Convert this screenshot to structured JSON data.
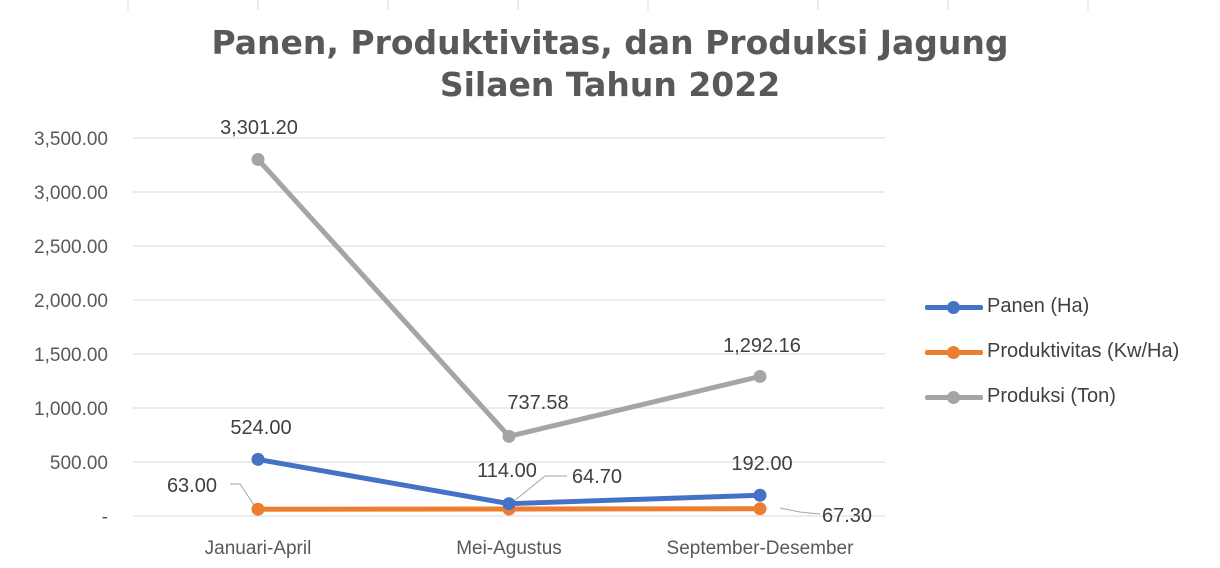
{
  "chart_data": {
    "type": "line",
    "title_lines": [
      "Panen, Produktivitas, dan Produksi Jagung",
      "Silaen Tahun 2022"
    ],
    "categories": [
      "Januari-April",
      "Mei-Agustus",
      "September-Desember"
    ],
    "ylim": [
      0,
      3500
    ],
    "yticks": [
      {
        "value": 0,
        "label": "-"
      },
      {
        "value": 500,
        "label": "500.00"
      },
      {
        "value": 1000,
        "label": "1,000.00"
      },
      {
        "value": 1500,
        "label": "1,500.00"
      },
      {
        "value": 2000,
        "label": "2,000.00"
      },
      {
        "value": 2500,
        "label": "2,500.00"
      },
      {
        "value": 3000,
        "label": "3,000.00"
      },
      {
        "value": 3500,
        "label": "3,500.00"
      }
    ],
    "grid": true,
    "legend_position": "right",
    "series": [
      {
        "name": "Panen (Ha)",
        "color": "#4472C4",
        "values": [
          524.0,
          114.0,
          192.0
        ],
        "labels": [
          "524.00",
          "114.00",
          "192.00"
        ]
      },
      {
        "name": "Produktivitas (Kw/Ha)",
        "color": "#ED7D31",
        "values": [
          63.0,
          64.7,
          67.3
        ],
        "labels": [
          "63.00",
          "64.70",
          "67.30"
        ]
      },
      {
        "name": "Produksi (Ton)",
        "color": "#A5A5A5",
        "values": [
          3301.2,
          737.58,
          1292.16
        ],
        "labels": [
          "3,301.20",
          "737.58",
          "1,292.16"
        ]
      }
    ]
  }
}
